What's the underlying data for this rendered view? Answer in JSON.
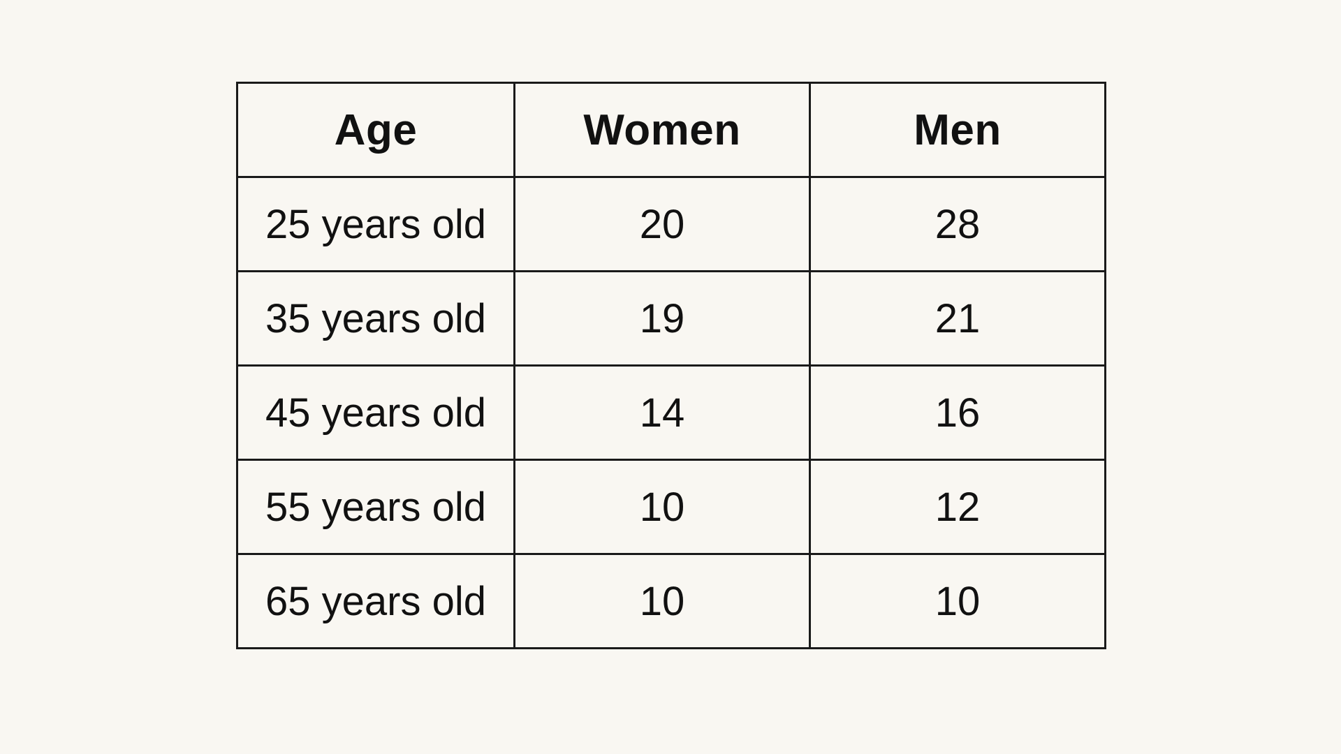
{
  "chart_data": {
    "type": "table",
    "columns": [
      "Age",
      "Women",
      "Men"
    ],
    "rows": [
      [
        "25 years old",
        "20",
        "28"
      ],
      [
        "35 years old",
        "19",
        "21"
      ],
      [
        "45 years old",
        "14",
        "16"
      ],
      [
        "55 years old",
        "10",
        "12"
      ],
      [
        "65 years old",
        "10",
        "10"
      ]
    ]
  }
}
